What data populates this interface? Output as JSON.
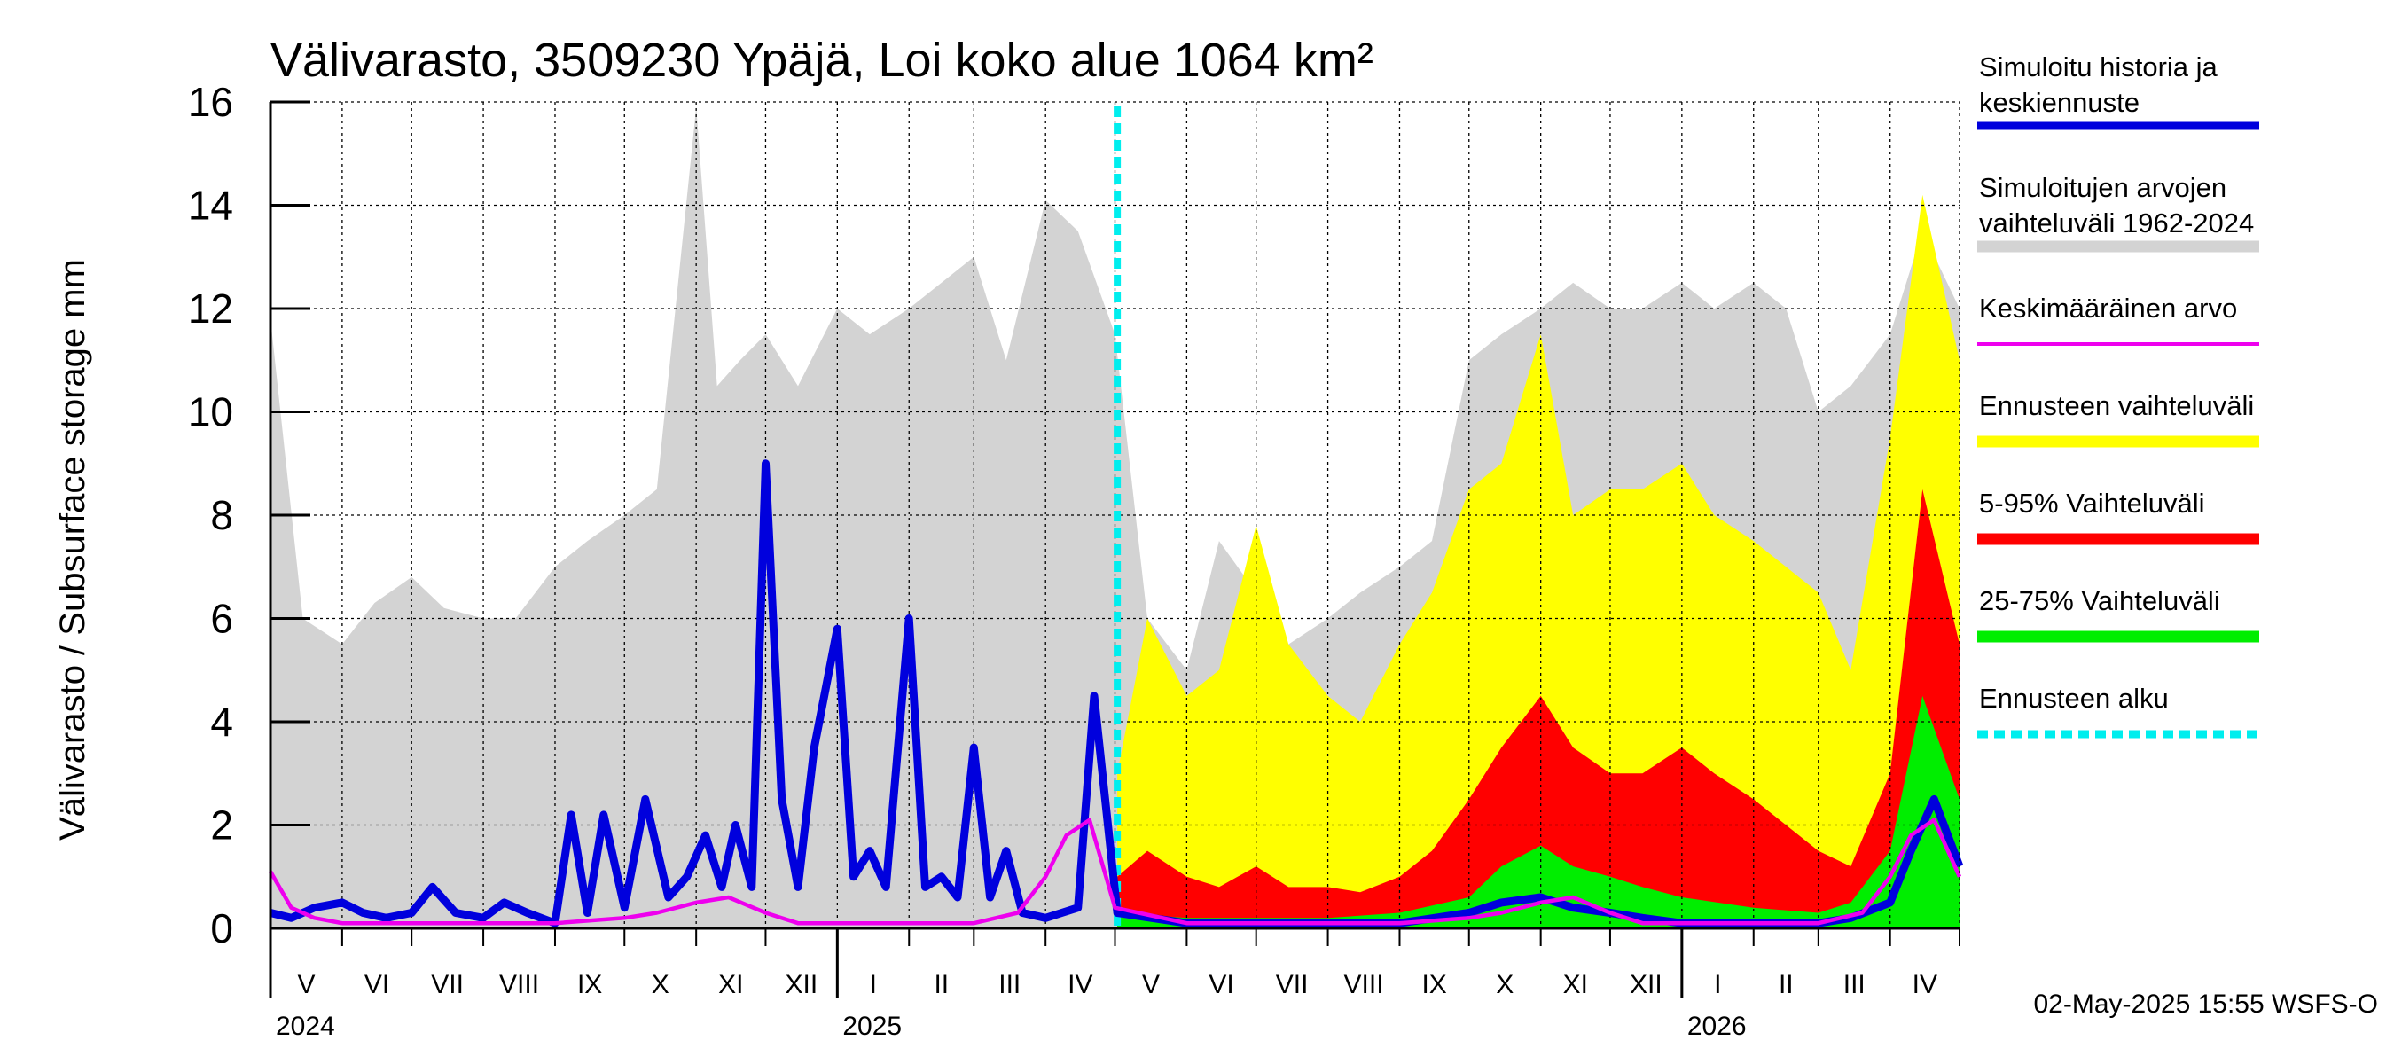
{
  "chart_data": {
    "type": "area",
    "title": "Välivarasto, 3509230 Ypäjä, Loi koko alue 1064 km²",
    "ylabel": "Välivarasto / Subsurface storage  mm",
    "xlabel": "",
    "ylim": [
      0,
      16
    ],
    "yticks": [
      "0",
      "2",
      "4",
      "6",
      "8",
      "10",
      "12",
      "14",
      "16"
    ],
    "x_start": "2024-05-01",
    "x_end": "2026-05-01",
    "forecast_start": "2025-05-02",
    "grid": true,
    "legend_position": "right",
    "months": [
      "V",
      "VI",
      "VII",
      "VIII",
      "IX",
      "X",
      "XI",
      "XII",
      "I",
      "II",
      "III",
      "IV",
      "V",
      "VI",
      "VII",
      "VIII",
      "IX",
      "X",
      "XI",
      "XII",
      "I",
      "II",
      "III",
      "IV"
    ],
    "years": [
      "2024",
      "2025",
      "2026"
    ],
    "legend": [
      {
        "label": "Simuloitu historia ja keskiennuste",
        "line1": "Simuloitu historia ja",
        "line2": "keskiennuste",
        "color": "#0000dd",
        "style": "line"
      },
      {
        "label": "Simuloitujen arvojen vaihteluväli 1962-2024",
        "line1": "Simuloitujen arvojen",
        "line2": "vaihteluväli 1962-2024",
        "color": "#d3d3d3",
        "style": "band"
      },
      {
        "label": "Keskimääräinen arvo",
        "line1": "Keskimääräinen arvo",
        "line2": "",
        "color": "#ee00ee",
        "style": "line"
      },
      {
        "label": "Ennusteen vaihteluväli",
        "line1": "Ennusteen vaihteluväli",
        "line2": "",
        "color": "#ffff00",
        "style": "band"
      },
      {
        "label": "5-95% Vaihteluväli",
        "line1": "5-95% Vaihteluväli",
        "line2": "",
        "color": "#ff0000",
        "style": "band"
      },
      {
        "label": "25-75% Vaihteluväli",
        "line1": "25-75% Vaihteluväli",
        "line2": "",
        "color": "#00ee00",
        "style": "band"
      },
      {
        "label": "Ennusteen alku",
        "line1": "Ennusteen alku",
        "line2": "",
        "color": "#00eeee",
        "style": "dashed"
      }
    ],
    "series": [
      {
        "name": "Simuloitujen arvojen vaihteluväli 1962-2024",
        "color": "#d3d3d3",
        "x": [
          "2024-05-01",
          "2024-05-15",
          "2024-06-01",
          "2024-06-15",
          "2024-07-01",
          "2024-07-15",
          "2024-08-01",
          "2024-08-15",
          "2024-09-01",
          "2024-09-15",
          "2024-10-01",
          "2024-10-15",
          "2024-11-01",
          "2024-11-10",
          "2024-11-20",
          "2024-12-01",
          "2024-12-15",
          "2025-01-01",
          "2025-01-15",
          "2025-02-01",
          "2025-02-15",
          "2025-03-01",
          "2025-03-15",
          "2025-04-01",
          "2025-04-15",
          "2025-05-01",
          "2025-05-15",
          "2025-06-01",
          "2025-06-15",
          "2025-07-01",
          "2025-07-15",
          "2025-08-01",
          "2025-08-15",
          "2025-09-01",
          "2025-09-15",
          "2025-10-01",
          "2025-10-15",
          "2025-11-01",
          "2025-11-15",
          "2025-12-01",
          "2025-12-15",
          "2026-01-01",
          "2026-01-15",
          "2026-02-01",
          "2026-02-15",
          "2026-03-01",
          "2026-03-15",
          "2026-04-01",
          "2026-04-15",
          "2026-05-01"
        ],
        "values": [
          11.8,
          6.0,
          5.5,
          6.3,
          6.8,
          6.2,
          6.0,
          6.0,
          7.0,
          7.5,
          8.0,
          8.5,
          15.9,
          10.5,
          11.0,
          11.5,
          10.5,
          12.0,
          11.5,
          12.0,
          12.5,
          13.0,
          11.0,
          14.1,
          13.5,
          11.5,
          6.0,
          5.0,
          7.5,
          6.5,
          5.5,
          6.0,
          6.5,
          7.0,
          7.5,
          11.0,
          11.5,
          12.0,
          12.5,
          12.0,
          12.0,
          12.5,
          12.0,
          12.5,
          12.0,
          10.0,
          10.5,
          11.5,
          13.5,
          12.0
        ]
      },
      {
        "name": "Ennusteen vaihteluväli",
        "color": "#ffff00",
        "x": [
          "2025-05-02",
          "2025-05-15",
          "2025-06-01",
          "2025-06-15",
          "2025-07-01",
          "2025-07-15",
          "2025-08-01",
          "2025-08-15",
          "2025-09-01",
          "2025-09-15",
          "2025-10-01",
          "2025-10-15",
          "2025-11-01",
          "2025-11-15",
          "2025-12-01",
          "2025-12-15",
          "2026-01-01",
          "2026-01-15",
          "2026-02-01",
          "2026-02-15",
          "2026-03-01",
          "2026-03-15",
          "2026-04-01",
          "2026-04-15",
          "2026-05-01"
        ],
        "values": [
          3.0,
          6.0,
          4.5,
          5.0,
          7.8,
          5.5,
          4.5,
          4.0,
          5.5,
          6.5,
          8.5,
          9.0,
          11.5,
          8.0,
          8.5,
          8.5,
          9.0,
          8.0,
          7.5,
          7.0,
          6.5,
          5.0,
          9.5,
          14.2,
          11.0
        ]
      },
      {
        "name": "5-95% Vaihteluväli",
        "color": "#ff0000",
        "x": [
          "2025-05-02",
          "2025-05-15",
          "2025-06-01",
          "2025-06-15",
          "2025-07-01",
          "2025-07-15",
          "2025-08-01",
          "2025-08-15",
          "2025-09-01",
          "2025-09-15",
          "2025-10-01",
          "2025-10-15",
          "2025-11-01",
          "2025-11-15",
          "2025-12-01",
          "2025-12-15",
          "2026-01-01",
          "2026-01-15",
          "2026-02-01",
          "2026-02-15",
          "2026-03-01",
          "2026-03-15",
          "2026-04-01",
          "2026-04-15",
          "2026-05-01"
        ],
        "values": [
          1.0,
          1.5,
          1.0,
          0.8,
          1.2,
          0.8,
          0.8,
          0.7,
          1.0,
          1.5,
          2.5,
          3.5,
          4.5,
          3.5,
          3.0,
          3.0,
          3.5,
          3.0,
          2.5,
          2.0,
          1.5,
          1.2,
          3.0,
          8.5,
          5.5
        ]
      },
      {
        "name": "25-75% Vaihteluväli",
        "color": "#00ee00",
        "x": [
          "2025-05-02",
          "2025-06-01",
          "2025-07-01",
          "2025-08-01",
          "2025-09-01",
          "2025-10-01",
          "2025-10-15",
          "2025-11-01",
          "2025-11-15",
          "2025-12-01",
          "2025-12-15",
          "2026-01-01",
          "2026-02-01",
          "2026-03-01",
          "2026-03-15",
          "2026-04-01",
          "2026-04-15",
          "2026-05-01"
        ],
        "values": [
          0.3,
          0.2,
          0.2,
          0.2,
          0.3,
          0.6,
          1.2,
          1.6,
          1.2,
          1.0,
          0.8,
          0.6,
          0.4,
          0.3,
          0.5,
          1.5,
          4.5,
          2.5
        ]
      },
      {
        "name": "Simuloitu historia ja keskiennuste",
        "color": "#0000dd",
        "x": [
          "2024-05-01",
          "2024-05-10",
          "2024-05-20",
          "2024-06-01",
          "2024-06-10",
          "2024-06-20",
          "2024-07-01",
          "2024-07-10",
          "2024-07-20",
          "2024-08-01",
          "2024-08-10",
          "2024-08-20",
          "2024-09-01",
          "2024-09-08",
          "2024-09-15",
          "2024-09-22",
          "2024-10-01",
          "2024-10-10",
          "2024-10-20",
          "2024-10-28",
          "2024-11-05",
          "2024-11-12",
          "2024-11-18",
          "2024-11-25",
          "2024-12-01",
          "2024-12-08",
          "2024-12-15",
          "2024-12-22",
          "2025-01-01",
          "2025-01-08",
          "2025-01-15",
          "2025-01-22",
          "2025-02-01",
          "2025-02-08",
          "2025-02-15",
          "2025-02-22",
          "2025-03-01",
          "2025-03-08",
          "2025-03-15",
          "2025-03-22",
          "2025-04-01",
          "2025-04-08",
          "2025-04-15",
          "2025-04-22",
          "2025-05-02",
          "2025-06-01",
          "2025-07-01",
          "2025-08-01",
          "2025-09-01",
          "2025-10-01",
          "2025-10-15",
          "2025-11-01",
          "2025-11-15",
          "2025-12-01",
          "2025-12-15",
          "2026-01-01",
          "2026-02-01",
          "2026-03-01",
          "2026-03-15",
          "2026-04-01",
          "2026-04-10",
          "2026-04-20",
          "2026-05-01"
        ],
        "values": [
          0.3,
          0.2,
          0.4,
          0.5,
          0.3,
          0.2,
          0.3,
          0.8,
          0.3,
          0.2,
          0.5,
          0.3,
          0.1,
          2.2,
          0.3,
          2.2,
          0.4,
          2.5,
          0.6,
          1.0,
          1.8,
          0.8,
          2.0,
          0.8,
          9.0,
          2.5,
          0.8,
          3.5,
          5.8,
          1.0,
          1.5,
          0.8,
          6.0,
          0.8,
          1.0,
          0.6,
          3.5,
          0.6,
          1.5,
          0.3,
          0.2,
          0.3,
          0.4,
          4.5,
          0.3,
          0.1,
          0.1,
          0.1,
          0.1,
          0.3,
          0.5,
          0.6,
          0.4,
          0.3,
          0.2,
          0.1,
          0.1,
          0.1,
          0.2,
          0.5,
          1.5,
          2.5,
          1.2
        ]
      },
      {
        "name": "Keskimääräinen arvo",
        "color": "#ee00ee",
        "x": [
          "2024-05-01",
          "2024-05-10",
          "2024-05-20",
          "2024-06-01",
          "2024-07-01",
          "2024-08-01",
          "2024-09-01",
          "2024-10-01",
          "2024-10-15",
          "2024-11-01",
          "2024-11-15",
          "2024-12-01",
          "2024-12-15",
          "2025-01-01",
          "2025-02-01",
          "2025-03-01",
          "2025-03-20",
          "2025-04-01",
          "2025-04-10",
          "2025-04-20",
          "2025-05-01",
          "2025-06-01",
          "2025-07-01",
          "2025-08-01",
          "2025-09-01",
          "2025-10-01",
          "2025-10-15",
          "2025-11-01",
          "2025-11-15",
          "2025-12-01",
          "2025-12-15",
          "2026-01-01",
          "2026-02-01",
          "2026-03-01",
          "2026-03-20",
          "2026-04-01",
          "2026-04-10",
          "2026-04-20",
          "2026-05-01"
        ],
        "values": [
          1.1,
          0.4,
          0.2,
          0.1,
          0.1,
          0.1,
          0.1,
          0.2,
          0.3,
          0.5,
          0.6,
          0.3,
          0.1,
          0.1,
          0.1,
          0.1,
          0.3,
          1.0,
          1.8,
          2.1,
          0.4,
          0.1,
          0.1,
          0.1,
          0.1,
          0.2,
          0.3,
          0.5,
          0.6,
          0.3,
          0.1,
          0.1,
          0.1,
          0.1,
          0.3,
          1.0,
          1.8,
          2.1,
          1.0
        ]
      }
    ],
    "footer": "02-May-2025 15:55 WSFS-O"
  }
}
